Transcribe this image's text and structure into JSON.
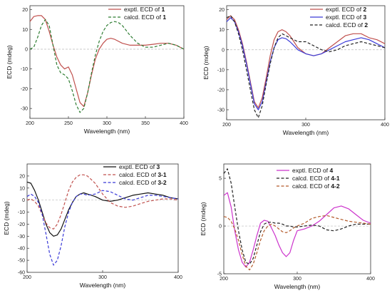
{
  "chart_data": [
    {
      "type": "line",
      "xlabel": "Wavelength (nm)",
      "ylabel": "ECD (mdeg)",
      "xlim": [
        200,
        400
      ],
      "ylim": [
        -35,
        22
      ],
      "xticks": [
        200,
        250,
        300,
        350,
        400
      ],
      "yticks": [
        20,
        10,
        0,
        -10,
        -20,
        -30
      ],
      "zero_line": true,
      "legend_position": "top-right",
      "series": [
        {
          "legend_prefix": "exptl. ECD of ",
          "legend_bold": "1",
          "color": "#c0504d",
          "dash": "solid",
          "x": [
            200,
            205,
            210,
            215,
            220,
            225,
            230,
            235,
            240,
            245,
            250,
            255,
            260,
            265,
            270,
            275,
            280,
            285,
            290,
            295,
            300,
            305,
            310,
            320,
            330,
            340,
            350,
            360,
            370,
            380,
            390,
            400
          ],
          "y": [
            14,
            16.5,
            17,
            17,
            15,
            9,
            2,
            -4,
            -8,
            -10,
            -9,
            -13,
            -20,
            -27,
            -29,
            -22,
            -13,
            -5,
            0,
            3,
            5,
            5.5,
            5,
            3,
            2,
            2,
            2,
            2.5,
            3,
            3,
            2,
            0
          ]
        },
        {
          "legend_prefix": "calcd. ECD of ",
          "legend_bold": "1",
          "color": "#2e7d32",
          "dash": "dashed",
          "x": [
            200,
            205,
            210,
            215,
            220,
            225,
            230,
            235,
            240,
            245,
            250,
            255,
            260,
            265,
            270,
            275,
            280,
            285,
            290,
            295,
            300,
            305,
            310,
            315,
            320,
            330,
            340,
            350,
            360,
            370,
            380,
            390,
            400
          ],
          "y": [
            0,
            1,
            6,
            12,
            15,
            12,
            2,
            -8,
            -12,
            -13,
            -15,
            -21,
            -28,
            -32,
            -30,
            -22,
            -12,
            -3,
            4,
            9,
            12,
            13.5,
            14,
            13.5,
            12,
            7,
            3,
            1,
            1,
            2,
            3,
            2,
            0
          ]
        }
      ]
    },
    {
      "type": "line",
      "xlabel": "Wavelength (nm)",
      "ylabel": "ECD (mdeg)",
      "xlim": [
        200,
        400
      ],
      "ylim": [
        -35,
        22
      ],
      "xticks": [
        200,
        300,
        400
      ],
      "yticks": [
        20,
        10,
        0,
        -10,
        -20,
        -30
      ],
      "zero_line": true,
      "legend_position": "top-right",
      "series": [
        {
          "legend_prefix": "exptl. ECD of ",
          "legend_bold": "2",
          "color": "#c0504d",
          "dash": "solid",
          "x": [
            200,
            205,
            210,
            215,
            220,
            225,
            230,
            235,
            240,
            245,
            250,
            255,
            260,
            265,
            270,
            275,
            280,
            285,
            290,
            300,
            310,
            320,
            330,
            340,
            350,
            360,
            370,
            380,
            390,
            400
          ],
          "y": [
            15,
            17,
            15,
            10,
            3,
            -6,
            -16,
            -26,
            -29,
            -24,
            -14,
            -3,
            5,
            9,
            10,
            9,
            7,
            4,
            1,
            -2,
            -3,
            -2,
            1,
            4,
            7,
            8,
            8,
            6,
            5,
            3
          ]
        },
        {
          "legend_prefix": "exptl. ECD of ",
          "legend_bold": "3",
          "color": "#3a3ad8",
          "dash": "solid",
          "x": [
            200,
            205,
            210,
            215,
            220,
            225,
            230,
            235,
            240,
            245,
            250,
            255,
            260,
            265,
            270,
            275,
            280,
            285,
            290,
            300,
            310,
            320,
            330,
            340,
            350,
            360,
            370,
            380,
            390,
            400
          ],
          "y": [
            14,
            16,
            14,
            9,
            2,
            -7,
            -17,
            -27,
            -30,
            -26,
            -16,
            -6,
            1,
            5,
            6,
            5.5,
            4,
            2,
            0,
            -2,
            -3,
            -2,
            0,
            2,
            4,
            5,
            6,
            5,
            3,
            1
          ]
        },
        {
          "legend_prefix": "calcd. ECD of ",
          "legend_bold": "2",
          "color": "#222222",
          "dash": "dashed",
          "x": [
            200,
            205,
            210,
            215,
            220,
            225,
            230,
            235,
            240,
            245,
            250,
            255,
            260,
            265,
            270,
            275,
            280,
            285,
            290,
            300,
            310,
            320,
            330,
            340,
            350,
            360,
            370,
            380,
            390,
            400
          ],
          "y": [
            16,
            17,
            14,
            8,
            0,
            -10,
            -20,
            -30,
            -34,
            -28,
            -17,
            -7,
            1,
            6,
            8,
            7,
            6,
            5,
            4,
            4,
            2,
            0,
            -1,
            0,
            2,
            3,
            4,
            3,
            2,
            1
          ]
        }
      ]
    },
    {
      "type": "line",
      "xlabel": "Wavelength (nm)",
      "ylabel": "ECD (mdeg)",
      "xlim": [
        200,
        400
      ],
      "ylim": [
        -60,
        30
      ],
      "xticks": [
        200,
        300,
        400
      ],
      "yticks": [
        20,
        10,
        0,
        -10,
        -20,
        -30,
        -40,
        -50,
        -60
      ],
      "zero_line": true,
      "legend_position": "top-right",
      "series": [
        {
          "legend_prefix": "exptl. ECD of ",
          "legend_bold": "3",
          "color": "#111111",
          "dash": "solid",
          "x": [
            200,
            205,
            210,
            215,
            220,
            225,
            230,
            235,
            240,
            245,
            250,
            255,
            260,
            265,
            270,
            275,
            280,
            290,
            300,
            310,
            320,
            330,
            340,
            350,
            360,
            370,
            380,
            390,
            400
          ],
          "y": [
            15,
            14,
            8,
            0,
            -10,
            -20,
            -27,
            -30,
            -29,
            -24,
            -16,
            -8,
            -2,
            3,
            5,
            6,
            5,
            3,
            0,
            -1,
            0,
            2,
            4,
            5,
            6,
            5,
            4,
            2,
            1
          ]
        },
        {
          "legend_prefix": "calcd. ECD of ",
          "legend_bold": "3-1",
          "color": "#c0504d",
          "dash": "dashed",
          "x": [
            200,
            205,
            210,
            215,
            220,
            225,
            230,
            235,
            240,
            245,
            250,
            255,
            260,
            265,
            270,
            275,
            280,
            290,
            300,
            310,
            320,
            330,
            340,
            350,
            360,
            370,
            380,
            390,
            400
          ],
          "y": [
            0,
            1,
            -1,
            -5,
            -12,
            -19,
            -23,
            -24,
            -20,
            -12,
            -2,
            8,
            15,
            19,
            21,
            21,
            20,
            14,
            5,
            -2,
            -5,
            -6,
            -5,
            -3,
            -1,
            0,
            1,
            1,
            0
          ]
        },
        {
          "legend_prefix": "calcd. ECD of ",
          "legend_bold": "3-2",
          "color": "#3a3ad8",
          "dash": "dashed",
          "x": [
            200,
            205,
            210,
            215,
            220,
            225,
            230,
            235,
            240,
            245,
            250,
            255,
            260,
            265,
            270,
            275,
            280,
            290,
            300,
            310,
            320,
            330,
            340,
            350,
            360,
            370,
            380,
            390,
            400
          ],
          "y": [
            3,
            5,
            3,
            -2,
            -12,
            -28,
            -45,
            -54,
            -50,
            -38,
            -22,
            -10,
            -2,
            3,
            5,
            5,
            4,
            5,
            8,
            7,
            4,
            1,
            0,
            2,
            4,
            4,
            3,
            2,
            1
          ]
        }
      ]
    },
    {
      "type": "line",
      "xlabel": "Wavelength (nm)",
      "ylabel": "ECD (mdeg)",
      "xlim": [
        200,
        400
      ],
      "ylim": [
        -5,
        6.5
      ],
      "xticks": [
        200,
        300,
        400
      ],
      "yticks": [
        5,
        0,
        -5
      ],
      "zero_line": true,
      "legend_position": "top-right",
      "series": [
        {
          "legend_prefix": "exptl. ECD of ",
          "legend_bold": "4",
          "color": "#cc33cc",
          "dash": "solid",
          "x": [
            200,
            205,
            210,
            215,
            220,
            225,
            230,
            235,
            240,
            245,
            250,
            255,
            260,
            265,
            270,
            275,
            280,
            285,
            290,
            295,
            300,
            310,
            320,
            330,
            340,
            350,
            360,
            370,
            380,
            390,
            400
          ],
          "y": [
            3.2,
            3.5,
            2,
            -0.5,
            -2.5,
            -3.8,
            -4.3,
            -3.8,
            -2.5,
            -1,
            0.3,
            0.6,
            0.5,
            -0.2,
            -1,
            -2,
            -2.8,
            -3.2,
            -2.8,
            -1.5,
            -0.5,
            -0.3,
            0,
            0.5,
            1.2,
            1.9,
            2.1,
            1.8,
            1.2,
            0.6,
            0.3
          ]
        },
        {
          "legend_prefix": "calcd. ECD of ",
          "legend_bold": "4-1",
          "color": "#222222",
          "dash": "dashed",
          "x": [
            200,
            205,
            210,
            215,
            220,
            225,
            230,
            235,
            240,
            245,
            250,
            255,
            260,
            265,
            270,
            275,
            280,
            285,
            290,
            295,
            300,
            310,
            320,
            330,
            340,
            350,
            360,
            370,
            380,
            390,
            400
          ],
          "y": [
            5.5,
            6,
            4.5,
            2,
            -0.5,
            -2.5,
            -3.8,
            -4,
            -3.4,
            -2,
            -0.6,
            0.2,
            0.4,
            0.4,
            0.3,
            0.3,
            0.2,
            0,
            0,
            -0.1,
            -0.1,
            0,
            0.1,
            0,
            -0.4,
            -0.5,
            -0.3,
            0,
            0.2,
            0.2,
            0.2
          ]
        },
        {
          "legend_prefix": "calcd. ECD of ",
          "legend_bold": "4-2",
          "color": "#b35a2a",
          "dash": "dashed",
          "x": [
            200,
            205,
            210,
            215,
            220,
            225,
            230,
            235,
            240,
            245,
            250,
            255,
            260,
            265,
            270,
            275,
            280,
            285,
            290,
            295,
            300,
            310,
            320,
            330,
            340,
            350,
            360,
            370,
            380,
            390,
            400
          ],
          "y": [
            1,
            0.9,
            0.5,
            -0.3,
            -1.5,
            -3,
            -4.2,
            -4.6,
            -4,
            -2.8,
            -1.5,
            -0.5,
            0,
            0.2,
            0,
            -0.3,
            -0.6,
            -0.7,
            -0.5,
            -0.2,
            0,
            0.3,
            0.8,
            1,
            1.1,
            0.9,
            0.7,
            0.5,
            0.4,
            0.3,
            0.2
          ]
        }
      ]
    }
  ]
}
